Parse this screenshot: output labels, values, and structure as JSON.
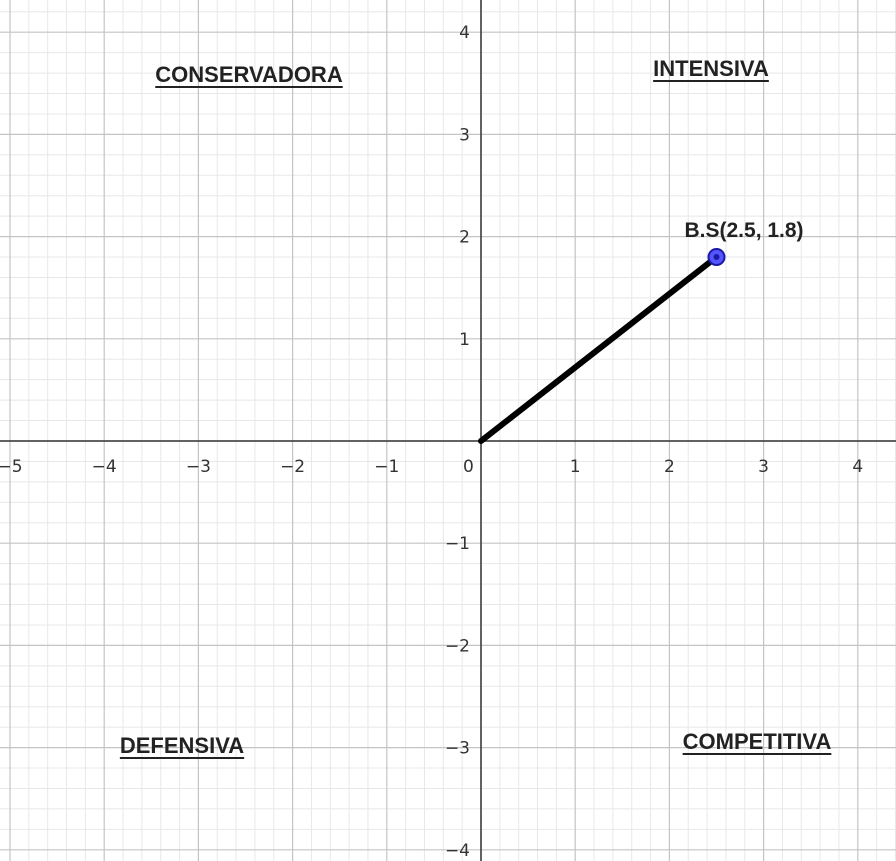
{
  "chart_data": {
    "type": "scatter",
    "xlim": [
      -5,
      4
    ],
    "ylim": [
      -4,
      4
    ],
    "grid": true,
    "minor_grid_per_unit": 5,
    "x_ticks": [
      -5,
      -4,
      -3,
      -2,
      -1,
      0,
      1,
      2,
      3,
      4
    ],
    "y_ticks": [
      -4,
      -3,
      -2,
      -1,
      1,
      2,
      3,
      4
    ],
    "tick_labels": {
      "x": [
        "−5",
        "−4",
        "−3",
        "−2",
        "−1",
        "0",
        "1",
        "2",
        "3",
        "4"
      ],
      "y": [
        "−4",
        "−3",
        "−2",
        "−1",
        "1",
        "2",
        "3",
        "4"
      ]
    },
    "quadrant_labels": [
      {
        "quadrant": "top-left",
        "text": "CONSERVADORA"
      },
      {
        "quadrant": "top-right",
        "text": "INTENSIVA"
      },
      {
        "quadrant": "bottom-left",
        "text": "DEFENSIVA"
      },
      {
        "quadrant": "bottom-right",
        "text": "COMPETITIVA"
      }
    ],
    "segment": {
      "from": [
        0,
        0
      ],
      "to": [
        2.5,
        1.8
      ]
    },
    "points": [
      {
        "label": "B.S(2.5, 1.8)",
        "x": 2.5,
        "y": 1.8
      }
    ],
    "colors": {
      "axis": "#333333",
      "major_grid": "#c4c4c4",
      "minor_grid": "#e8e8e8",
      "segment": "#000000",
      "point_fill": "#5555ff",
      "point_stroke": "#1a1aa6"
    }
  }
}
